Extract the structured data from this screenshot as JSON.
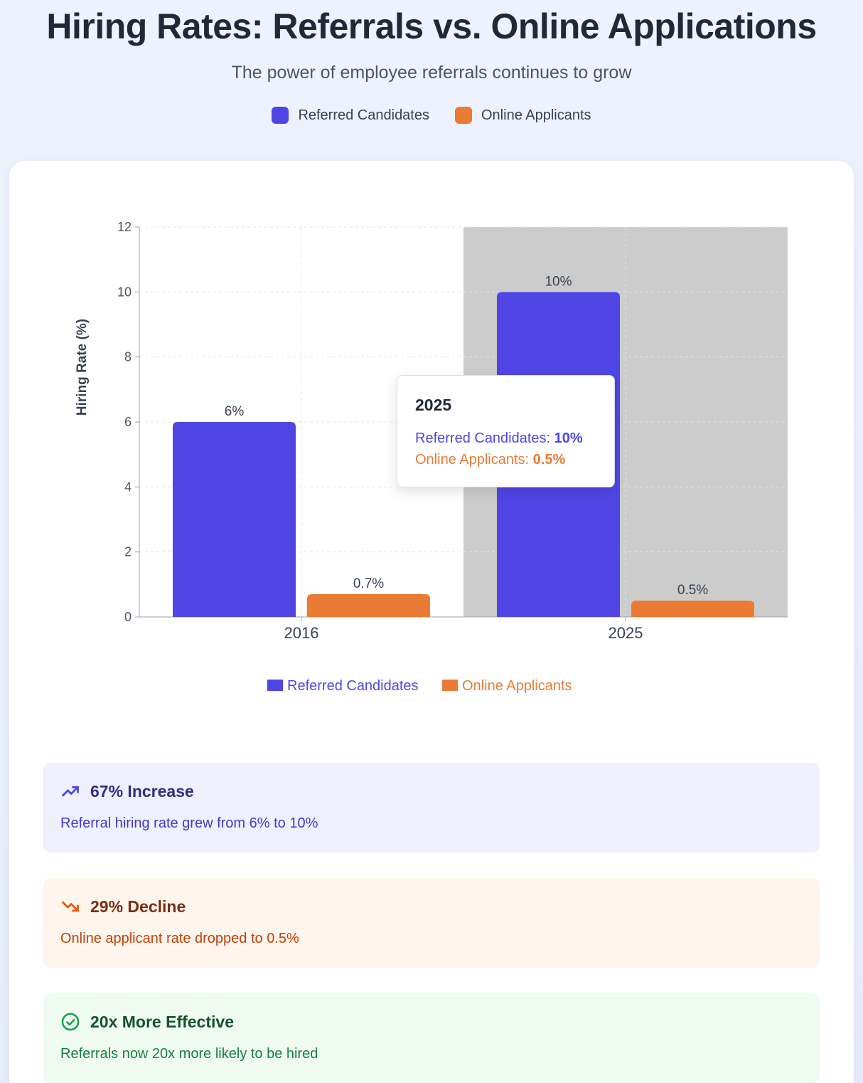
{
  "header": {
    "title": "Hiring Rates: Referrals vs. Online Applications",
    "subtitle": "The power of employee referrals continues to grow"
  },
  "colors": {
    "referred": "#4f46e5",
    "online": "#ea7b35",
    "highlight": "#cccccc"
  },
  "top_legend": [
    {
      "label": "Referred Candidates",
      "color": "#4f46e5"
    },
    {
      "label": "Online Applicants",
      "color": "#ea7b35"
    }
  ],
  "chart_data": {
    "type": "bar",
    "categories": [
      "2016",
      "2025"
    ],
    "series": [
      {
        "name": "Referred Candidates",
        "values": [
          6,
          10
        ],
        "labels": [
          "6%",
          "10%"
        ],
        "color": "#4f46e5"
      },
      {
        "name": "Online Applicants",
        "values": [
          0.7,
          0.5
        ],
        "labels": [
          "0.7%",
          "0.5%"
        ],
        "color": "#ea7b35"
      }
    ],
    "ylabel": "Hiring Rate (%)",
    "xlabel": "",
    "ylim": [
      0,
      12
    ],
    "yticks": [
      "0",
      "2",
      "4",
      "6",
      "8",
      "10",
      "12"
    ],
    "grid": true,
    "highlighted_category": "2025",
    "legend_position": "bottom"
  },
  "tooltip": {
    "title": "2025",
    "rows": [
      {
        "label": "Referred Candidates: ",
        "value": "10%"
      },
      {
        "label": "Online Applicants: ",
        "value": "0.5%"
      }
    ]
  },
  "insights": [
    {
      "icon": "trending-up-icon",
      "title": "67% Increase",
      "text": "Referral hiring rate grew from 6% to 10%"
    },
    {
      "icon": "trending-down-icon",
      "title": "29% Decline",
      "text": "Online applicant rate dropped to 0.5%"
    },
    {
      "icon": "check-circle-icon",
      "title": "20x More Effective",
      "text": "Referrals now 20x more likely to be hired"
    }
  ]
}
